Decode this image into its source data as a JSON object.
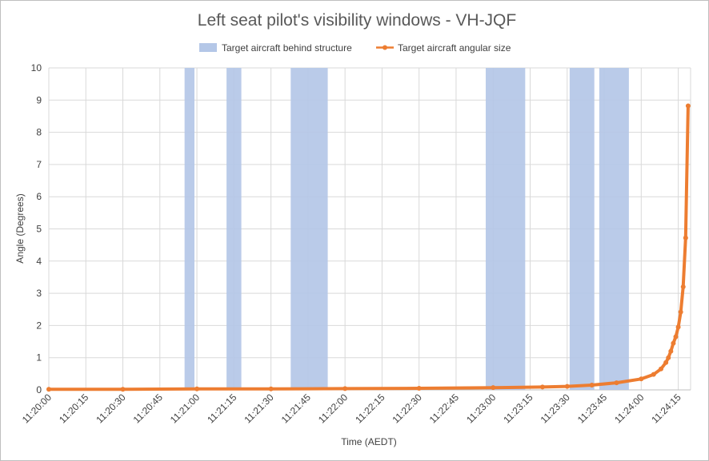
{
  "chart_data": {
    "type": "line",
    "title": "Left seat pilot's visibility windows - VH-JQF",
    "xlabel": "Time (AEDT)",
    "ylabel": "Angle (Degrees)",
    "ylim": [
      0,
      10
    ],
    "yticks": [
      0,
      1,
      2,
      3,
      4,
      5,
      6,
      7,
      8,
      9,
      10
    ],
    "xlim": [
      "11:20:00",
      "11:24:20"
    ],
    "xticks": [
      "11:20:00",
      "11:20:15",
      "11:20:30",
      "11:20:45",
      "11:21:00",
      "11:21:15",
      "11:21:30",
      "11:21:45",
      "11:22:00",
      "11:22:15",
      "11:22:30",
      "11:22:45",
      "11:23:00",
      "11:23:15",
      "11:23:30",
      "11:23:45",
      "11:24:00",
      "11:24:15"
    ],
    "grid": "vertical and horizontal",
    "legend_position": "top",
    "series": [
      {
        "name": "Target aircraft behind structure",
        "kind": "shaded-windows",
        "color": "#b4c7e7",
        "windows": [
          [
            "11:20:55",
            "11:20:59"
          ],
          [
            "11:21:12",
            "11:21:18"
          ],
          [
            "11:21:38",
            "11:21:53"
          ],
          [
            "11:22:57",
            "11:23:13"
          ],
          [
            "11:23:31",
            "11:23:41"
          ],
          [
            "11:23:43",
            "11:23:55"
          ]
        ]
      },
      {
        "name": "Target aircraft angular size",
        "kind": "line-with-markers",
        "color": "#ed7d31",
        "points": [
          [
            "11:20:00",
            0.02
          ],
          [
            "11:20:30",
            0.02
          ],
          [
            "11:21:00",
            0.03
          ],
          [
            "11:21:30",
            0.03
          ],
          [
            "11:22:00",
            0.04
          ],
          [
            "11:22:30",
            0.05
          ],
          [
            "11:23:00",
            0.07
          ],
          [
            "11:23:20",
            0.09
          ],
          [
            "11:23:30",
            0.11
          ],
          [
            "11:23:40",
            0.15
          ],
          [
            "11:23:50",
            0.22
          ],
          [
            "11:24:00",
            0.34
          ],
          [
            "11:24:05",
            0.48
          ],
          [
            "11:24:08",
            0.65
          ],
          [
            "11:24:10",
            0.85
          ],
          [
            "11:24:11",
            1.0
          ],
          [
            "11:24:12",
            1.2
          ],
          [
            "11:24:13",
            1.45
          ],
          [
            "11:24:14",
            1.65
          ],
          [
            "11:24:15",
            1.95
          ],
          [
            "11:24:16",
            2.42
          ],
          [
            "11:24:17",
            3.2
          ],
          [
            "11:24:18",
            4.72
          ],
          [
            "11:24:19",
            8.82
          ]
        ]
      }
    ]
  }
}
